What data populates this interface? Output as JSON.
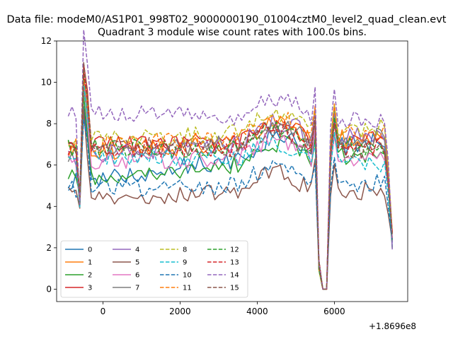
{
  "figure": {
    "suptitle": "Data file: modeM0/AS1P01_998T02_9000000190_01004cztM0_level2_quad_clean.evt",
    "title": "Quadrant 3 module wise count rates with 100.0s bins."
  },
  "chart_data": {
    "type": "line",
    "title": "Quadrant 3 module wise count rates with 100.0s bins.",
    "xlabel": "",
    "ylabel": "",
    "x_offset_text": "+1.8696e8",
    "xlim": [
      -1200,
      7900
    ],
    "ylim": [
      -0.6,
      12
    ],
    "xticks": [
      0,
      2000,
      4000,
      6000
    ],
    "xtick_labels": [
      "0",
      "2000",
      "4000",
      "6000"
    ],
    "yticks": [
      0,
      2,
      4,
      6,
      8,
      10,
      12
    ],
    "ytick_labels": [
      "0",
      "2",
      "4",
      "6",
      "8",
      "10",
      "12"
    ],
    "grid": false,
    "legend_position": "lower-left",
    "legend_columns": 4,
    "bin_s": 100,
    "x_start": -900,
    "x_end": 7500,
    "series": [
      {
        "name": "0",
        "color": "#1f77b4",
        "dashed": false,
        "level_start": 5.2,
        "level_end": 7.2
      },
      {
        "name": "1",
        "color": "#ff7f0e",
        "dashed": false,
        "level_start": 6.6,
        "level_end": 7.4
      },
      {
        "name": "2",
        "color": "#2ca02c",
        "dashed": false,
        "level_start": 5.4,
        "level_end": 6.6
      },
      {
        "name": "3",
        "color": "#d62728",
        "dashed": false,
        "level_start": 7.0,
        "level_end": 7.2
      },
      {
        "name": "4",
        "color": "#9467bd",
        "dashed": false,
        "level_start": 6.4,
        "level_end": 7.6
      },
      {
        "name": "5",
        "color": "#8c564b",
        "dashed": false,
        "level_start": 4.5,
        "level_end": 4.8
      },
      {
        "name": "6",
        "color": "#e377c2",
        "dashed": false,
        "level_start": 6.2,
        "level_end": 6.4
      },
      {
        "name": "7",
        "color": "#7f7f7f",
        "dashed": false,
        "level_start": 6.6,
        "level_end": 7.4
      },
      {
        "name": "8",
        "color": "#bcbd22",
        "dashed": true,
        "level_start": 7.2,
        "level_end": 7.8
      },
      {
        "name": "9",
        "color": "#17becf",
        "dashed": true,
        "level_start": 6.5,
        "level_end": 6.0
      },
      {
        "name": "10",
        "color": "#1f77b4",
        "dashed": true,
        "level_start": 4.8,
        "level_end": 5.2
      },
      {
        "name": "11",
        "color": "#ff7f0e",
        "dashed": true,
        "level_start": 6.9,
        "level_end": 7.6
      },
      {
        "name": "12",
        "color": "#2ca02c",
        "dashed": true,
        "level_start": 6.8,
        "level_end": 6.9
      },
      {
        "name": "13",
        "color": "#d62728",
        "dashed": true,
        "level_start": 6.8,
        "level_end": 6.9
      },
      {
        "name": "14",
        "color": "#9467bd",
        "dashed": true,
        "level_start": 8.5,
        "level_end": 8.2
      },
      {
        "name": "15",
        "color": "#8c564b",
        "dashed": true,
        "level_start": 7.0,
        "level_end": 6.7
      }
    ]
  }
}
